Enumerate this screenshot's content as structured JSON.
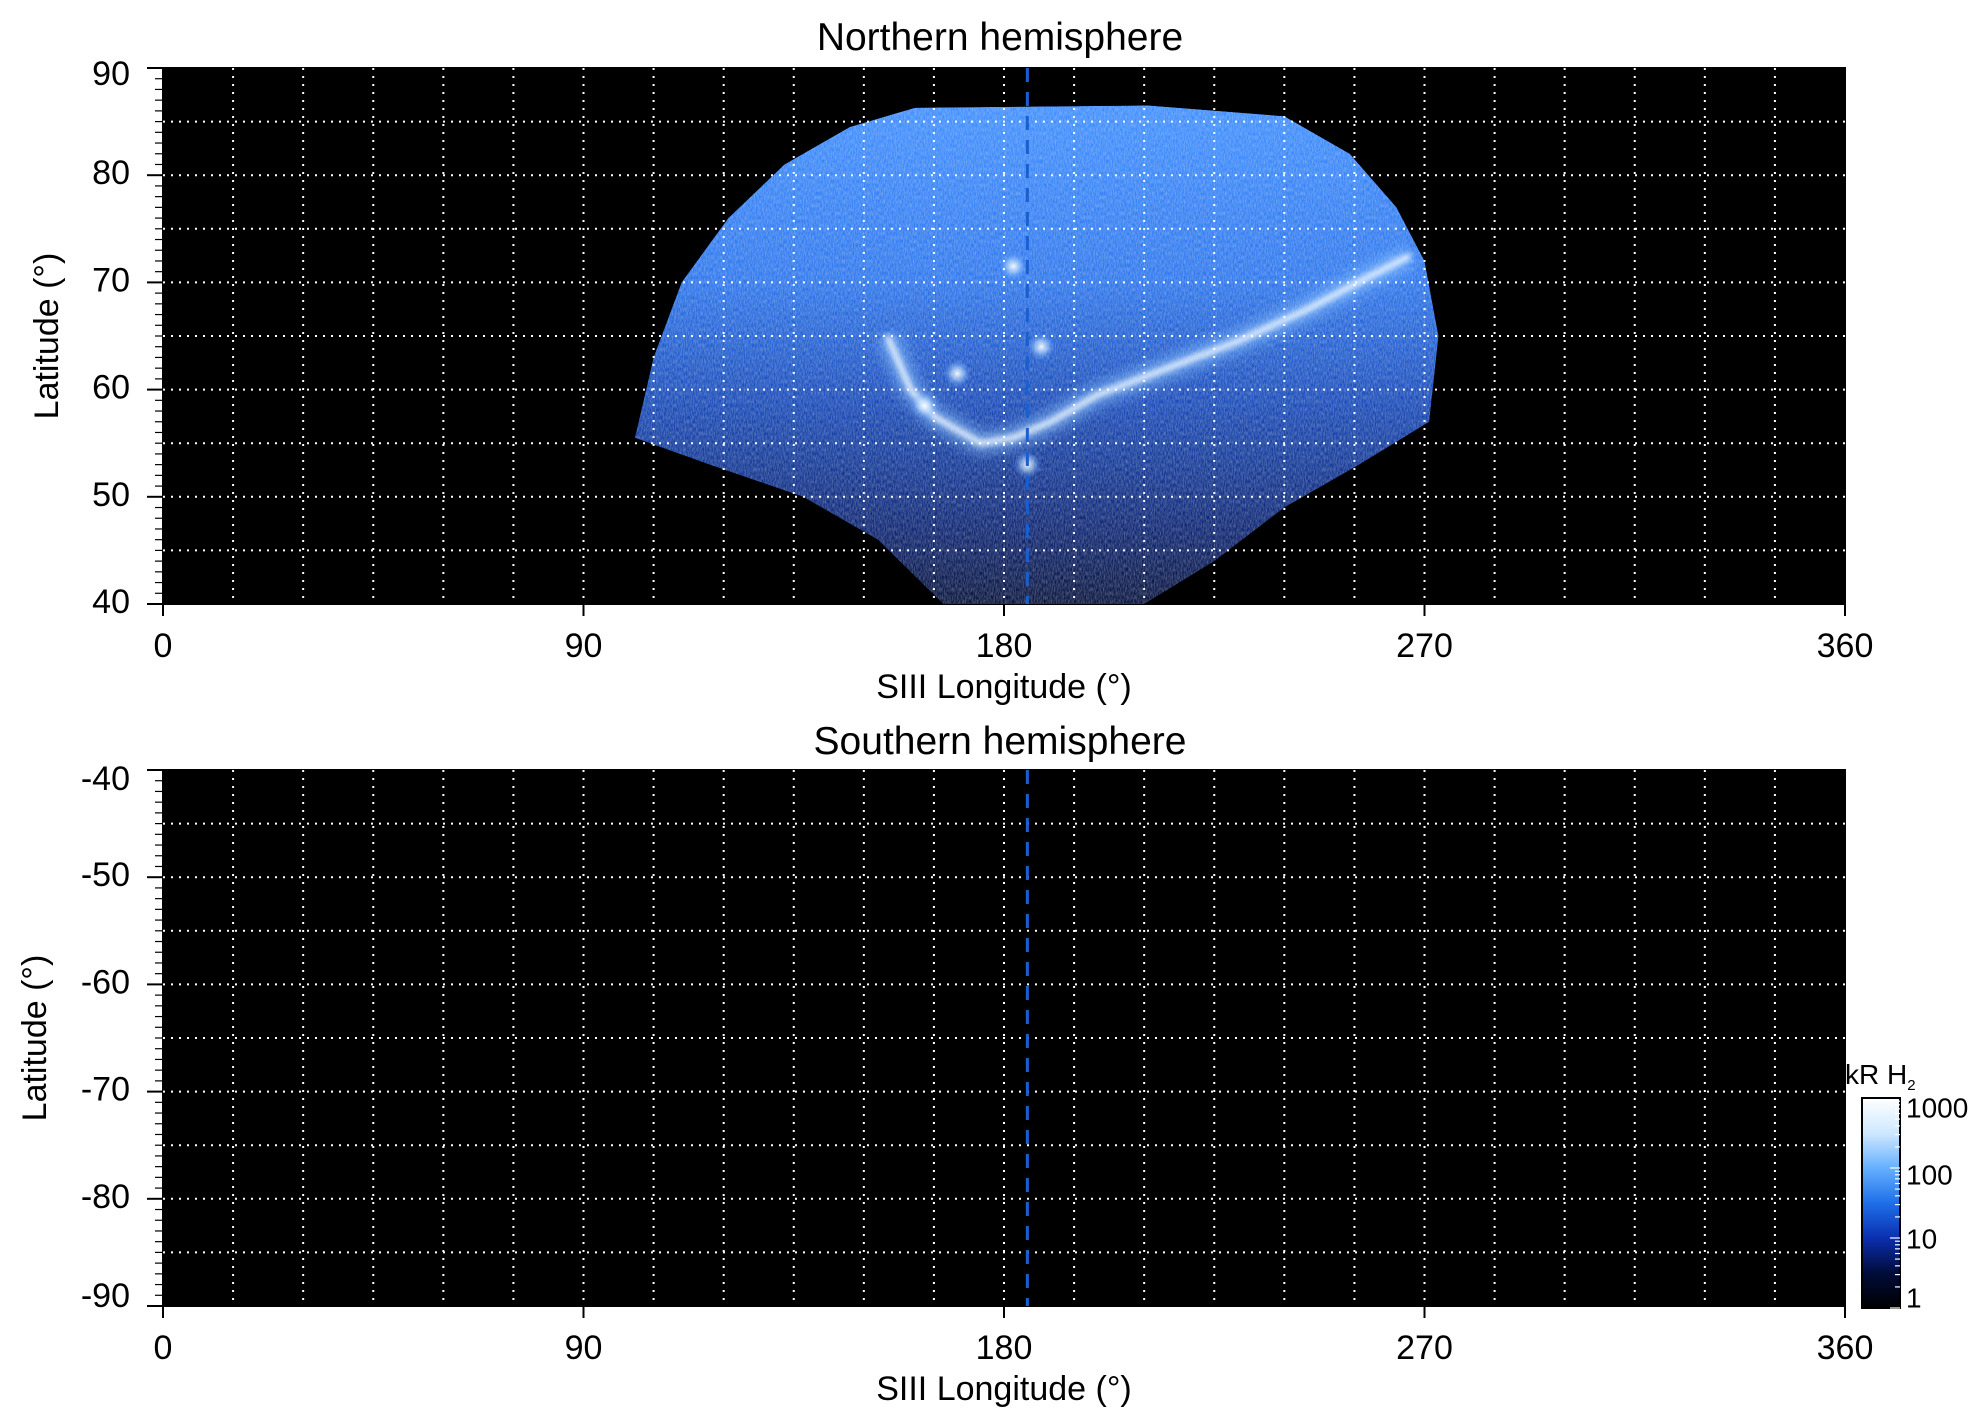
{
  "chart_data": [
    {
      "type": "heatmap",
      "title": "Northern hemisphere",
      "xlabel": "SIII Longitude (°)",
      "ylabel": "Latitude (°)",
      "xlim": [
        0,
        360
      ],
      "ylim": [
        40,
        90
      ],
      "x_ticks": [
        "0",
        "90",
        "180",
        "270",
        "360"
      ],
      "y_ticks": [
        "40",
        "50",
        "60",
        "70",
        "80",
        "90"
      ],
      "grid": true,
      "background": "#000000",
      "marker_longitude": 185,
      "emission": {
        "region": {
          "min_longitude": 101,
          "max_longitude": 270,
          "min_latitude": 40,
          "max_latitude": 86.5
        },
        "main_oval": [
          [
            155,
            65
          ],
          [
            160,
            60
          ],
          [
            165,
            57.5
          ],
          [
            175,
            55
          ],
          [
            182,
            55.5
          ],
          [
            190,
            57
          ],
          [
            200,
            59.5
          ],
          [
            215,
            62
          ],
          [
            230,
            64.5
          ],
          [
            245,
            67.5
          ],
          [
            258,
            70.5
          ],
          [
            267,
            72.5
          ]
        ],
        "bright_spots": [
          {
            "longitude": 170,
            "latitude": 61.5
          },
          {
            "longitude": 163,
            "latitude": 58.5
          },
          {
            "longitude": 185,
            "latitude": 53
          },
          {
            "longitude": 182,
            "latitude": 71.5
          },
          {
            "longitude": 188,
            "latitude": 64
          }
        ]
      }
    },
    {
      "type": "heatmap",
      "title": "Southern hemisphere",
      "xlabel": "SIII Longitude (°)",
      "ylabel": "Latitude (°)",
      "xlim": [
        0,
        360
      ],
      "ylim": [
        -90,
        -40
      ],
      "x_ticks": [
        "0",
        "90",
        "180",
        "270",
        "360"
      ],
      "y_ticks": [
        "-40",
        "-50",
        "-60",
        "-70",
        "-80",
        "-90"
      ],
      "grid": true,
      "background": "#000000",
      "marker_longitude": 185,
      "emission": null
    }
  ],
  "colorbar": {
    "title": "kR H",
    "subscript": "2",
    "scale": "log",
    "range": [
      1,
      1000
    ],
    "ticks": [
      "1000",
      "100",
      "10",
      "1"
    ],
    "colors": [
      "#000000",
      "#000c3a",
      "#0a2fb0",
      "#1f6fe8",
      "#66b0ff",
      "#cfe8ff",
      "#ffffff"
    ]
  },
  "colors": {
    "grid": "#ffffff",
    "marker": "#1a5fd0"
  }
}
